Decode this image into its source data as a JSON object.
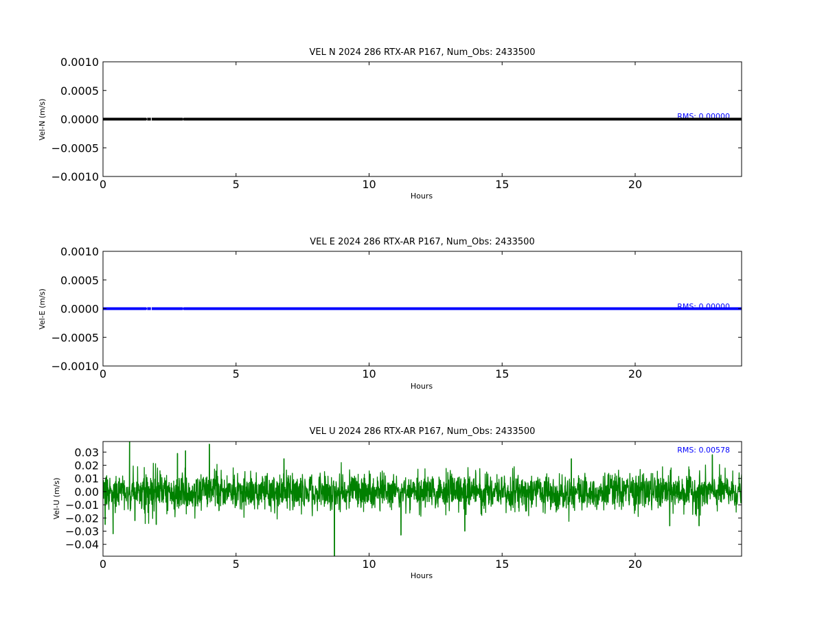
{
  "chart_data": [
    {
      "type": "scatter",
      "title": "VEL N 2024 286 RTX-AR  P167, Num_Obs: 2433500",
      "xlabel": "Hours",
      "ylabel": "Vel-N (m/s)",
      "xlim": [
        0,
        24
      ],
      "ylim": [
        -0.001,
        0.001
      ],
      "xticks": [
        0,
        5,
        10,
        15,
        20
      ],
      "xtick_labels": [
        "0",
        "5",
        "10",
        "15",
        "20"
      ],
      "yticks": [
        0.001,
        0.0005,
        0.0,
        -0.0005,
        -0.001
      ],
      "ytick_labels": [
        "0.0010",
        "0.0005",
        "0.0000",
        "−0.0005",
        "−0.0010"
      ],
      "grid": false,
      "rms_label": "RMS:  0.00000",
      "rms_color": "#0000ff",
      "series": [
        {
          "color": "#000000",
          "x": [
            0,
            0.5,
            1.0,
            1.6,
            1.9,
            2.5,
            3.05,
            5,
            10,
            15,
            20,
            24
          ],
          "y": [
            0,
            0,
            0,
            0,
            0,
            0,
            0,
            0,
            0,
            0,
            0,
            0
          ],
          "gaps_hours": [
            [
              1.63,
              1.66
            ],
            [
              1.8,
              1.83
            ],
            [
              3.0,
              3.06
            ]
          ]
        }
      ]
    },
    {
      "type": "scatter",
      "title": "VEL E 2024 286 RTX-AR  P167, Num_Obs: 2433500",
      "xlabel": "Hours",
      "ylabel": "Vel-E (m/s)",
      "xlim": [
        0,
        24
      ],
      "ylim": [
        -0.001,
        0.001
      ],
      "xticks": [
        0,
        5,
        10,
        15,
        20
      ],
      "xtick_labels": [
        "0",
        "5",
        "10",
        "15",
        "20"
      ],
      "yticks": [
        0.001,
        0.0005,
        0.0,
        -0.0005,
        -0.001
      ],
      "ytick_labels": [
        "0.0010",
        "0.0005",
        "0.0000",
        "−0.0005",
        "−0.0010"
      ],
      "grid": false,
      "rms_label": "RMS:  0.00000",
      "rms_color": "#0000ff",
      "series": [
        {
          "color": "#0000ff",
          "x": [
            0,
            0.5,
            1.0,
            1.6,
            1.9,
            2.5,
            3.05,
            5,
            10,
            15,
            20,
            24
          ],
          "y": [
            0,
            0,
            0,
            0,
            0,
            0,
            0,
            0,
            0,
            0,
            0,
            0
          ],
          "gaps_hours": [
            [
              1.63,
              1.66
            ],
            [
              1.8,
              1.83
            ],
            [
              3.0,
              3.06
            ]
          ]
        }
      ]
    },
    {
      "type": "line",
      "title": "VEL U 2024 286 RTX-AR  P167, Num_Obs: 2433500",
      "xlabel": "Hours",
      "ylabel": "Vel-U (m/s)",
      "xlim": [
        0,
        24
      ],
      "ylim": [
        -0.049,
        0.038
      ],
      "xticks": [
        0,
        5,
        10,
        15,
        20
      ],
      "xtick_labels": [
        "0",
        "5",
        "10",
        "15",
        "20"
      ],
      "yticks": [
        0.03,
        0.02,
        0.01,
        0.0,
        -0.01,
        -0.02,
        -0.03,
        -0.04
      ],
      "ytick_labels": [
        "0.03",
        "0.02",
        "0.01",
        "0.00",
        "−0.01",
        "−0.02",
        "−0.03",
        "−0.04"
      ],
      "grid": false,
      "rms_label": "RMS:  0.00578",
      "rms_color": "#0000ff",
      "series": [
        {
          "color": "#008000",
          "rms": 0.00578,
          "spikes": [
            {
              "x": 0.08,
              "y": -0.025
            },
            {
              "x": 0.38,
              "y": -0.032
            },
            {
              "x": 1.0,
              "y": 0.038
            },
            {
              "x": 1.2,
              "y": -0.022
            },
            {
              "x": 2.0,
              "y": -0.025
            },
            {
              "x": 2.8,
              "y": 0.029
            },
            {
              "x": 3.1,
              "y": 0.031
            },
            {
              "x": 4.0,
              "y": 0.036
            },
            {
              "x": 6.8,
              "y": 0.025
            },
            {
              "x": 8.7,
              "y": -0.049
            },
            {
              "x": 11.2,
              "y": -0.033
            },
            {
              "x": 13.6,
              "y": -0.03
            },
            {
              "x": 17.6,
              "y": 0.025
            },
            {
              "x": 21.3,
              "y": -0.026
            },
            {
              "x": 22.4,
              "y": -0.026
            },
            {
              "x": 22.9,
              "y": 0.028
            }
          ]
        }
      ]
    }
  ]
}
